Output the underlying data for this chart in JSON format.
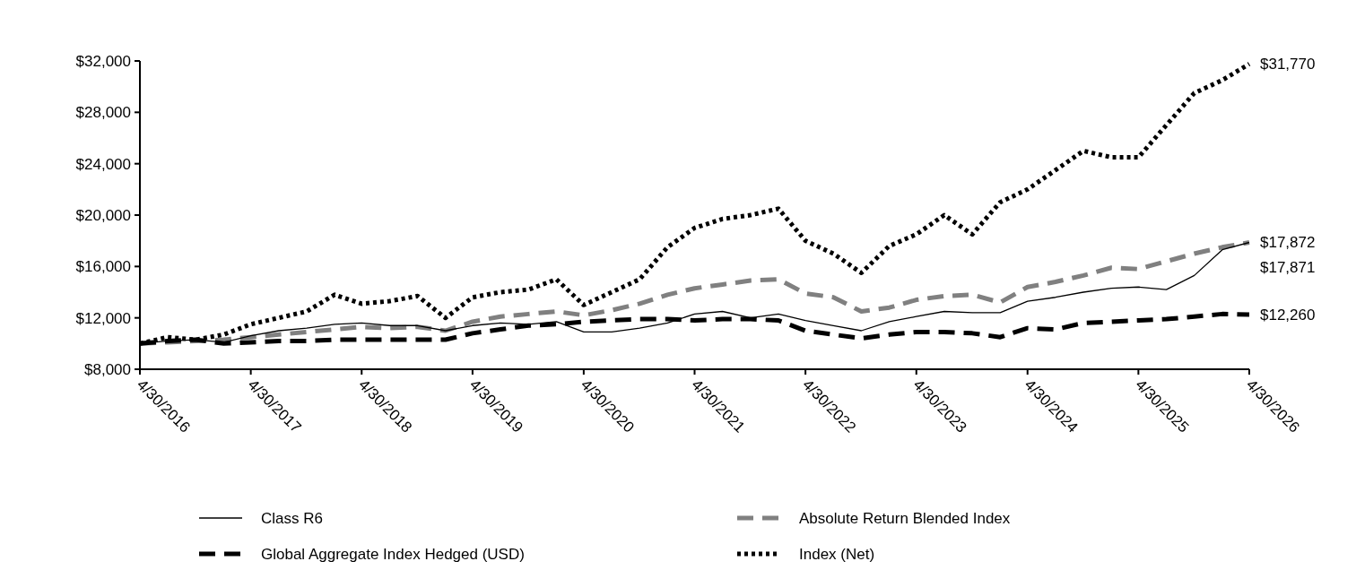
{
  "chart_data": {
    "type": "line",
    "x": [
      "2016-04-30",
      "2016-07-31",
      "2016-10-31",
      "2017-01-31",
      "2017-04-30",
      "2017-07-31",
      "2017-10-31",
      "2018-01-31",
      "2018-04-30",
      "2018-07-31",
      "2018-10-31",
      "2019-01-31",
      "2019-04-30",
      "2019-07-31",
      "2019-10-31",
      "2020-01-31",
      "2020-04-30",
      "2020-07-31",
      "2020-10-31",
      "2021-01-31",
      "2021-04-30",
      "2021-07-31",
      "2021-10-31",
      "2022-01-31",
      "2022-04-30",
      "2022-07-31",
      "2022-10-31",
      "2023-01-31",
      "2023-04-30",
      "2023-07-31",
      "2023-10-31",
      "2024-01-31",
      "2024-04-30",
      "2024-07-31",
      "2024-10-31",
      "2025-01-31",
      "2025-04-30",
      "2025-07-31",
      "2025-10-31",
      "2026-01-31",
      "2026-04-30"
    ],
    "xlim": [
      "2016-04-30",
      "2026-04-30"
    ],
    "xticks": [
      {
        "value": "2016-04-30",
        "label": "4/30/2016"
      },
      {
        "value": "2017-04-30",
        "label": "4/30/2017"
      },
      {
        "value": "2018-04-30",
        "label": "4/30/2018"
      },
      {
        "value": "2019-04-30",
        "label": "4/30/2019"
      },
      {
        "value": "2020-04-30",
        "label": "4/30/2020"
      },
      {
        "value": "2021-04-30",
        "label": "4/30/2021"
      },
      {
        "value": "2022-04-30",
        "label": "4/30/2022"
      },
      {
        "value": "2023-04-30",
        "label": "4/30/2023"
      },
      {
        "value": "2024-04-30",
        "label": "4/30/2024"
      },
      {
        "value": "2025-04-30",
        "label": "4/30/2025"
      },
      {
        "value": "2026-04-30",
        "label": "4/30/2026"
      }
    ],
    "ylim": [
      8000,
      32000
    ],
    "yticks": [
      {
        "value": 8000,
        "label": "$8,000"
      },
      {
        "value": 12000,
        "label": "$12,000"
      },
      {
        "value": 16000,
        "label": "$16,000"
      },
      {
        "value": 20000,
        "label": "$20,000"
      },
      {
        "value": 24000,
        "label": "$24,000"
      },
      {
        "value": 28000,
        "label": "$28,000"
      },
      {
        "value": 32000,
        "label": "$32,000"
      }
    ],
    "grid": false,
    "legend": "bottom",
    "series": [
      {
        "name": "Class R6",
        "color": "#000000",
        "line_style": "solid",
        "values": [
          10000,
          10200,
          10300,
          10100,
          10600,
          11000,
          11200,
          11500,
          11600,
          11400,
          11400,
          11000,
          11400,
          11600,
          11500,
          11700,
          10900,
          10900,
          11200,
          11600,
          12300,
          12500,
          12000,
          12300,
          11800,
          11400,
          11000,
          11700,
          12100,
          12500,
          12400,
          12400,
          13300,
          13600,
          14000,
          14300,
          14400,
          14200,
          15300,
          17300,
          17872
        ],
        "value_labels": [
          null,
          null,
          null,
          null,
          null,
          null,
          null,
          null,
          null,
          null,
          null,
          null,
          null,
          null,
          null,
          null,
          null,
          null,
          null,
          null,
          null,
          null,
          null,
          null,
          null,
          null,
          null,
          null,
          null,
          null,
          null,
          null,
          null,
          null,
          null,
          null,
          null,
          null,
          null,
          null,
          "$17,872"
        ]
      },
      {
        "name": "Absolute Return Blended Index",
        "color": "#808080",
        "line_style": "dashed",
        "values": [
          10000,
          10100,
          10200,
          10300,
          10500,
          10700,
          10900,
          11100,
          11300,
          11200,
          11300,
          11000,
          11700,
          12100,
          12300,
          12500,
          12200,
          12600,
          13100,
          13800,
          14300,
          14600,
          14900,
          15000,
          13900,
          13600,
          12500,
          12800,
          13400,
          13700,
          13800,
          13200,
          14400,
          14800,
          15300,
          15900,
          15800,
          16400,
          17000,
          17500,
          17871
        ],
        "value_labels": [
          null,
          null,
          null,
          null,
          null,
          null,
          null,
          null,
          null,
          null,
          null,
          null,
          null,
          null,
          null,
          null,
          null,
          null,
          null,
          null,
          null,
          null,
          null,
          null,
          null,
          null,
          null,
          null,
          null,
          null,
          null,
          null,
          null,
          null,
          null,
          null,
          null,
          null,
          null,
          null,
          "$17,871"
        ]
      },
      {
        "name": "Global Aggregate Index Hedged (USD)",
        "color": "#000000",
        "line_style": "dashed",
        "values": [
          10000,
          10200,
          10300,
          10000,
          10100,
          10200,
          10200,
          10300,
          10300,
          10300,
          10300,
          10300,
          10800,
          11100,
          11400,
          11500,
          11700,
          11800,
          11900,
          11900,
          11800,
          11900,
          11900,
          11800,
          11000,
          10700,
          10400,
          10700,
          10900,
          10900,
          10800,
          10500,
          11200,
          11100,
          11600,
          11700,
          11800,
          11900,
          12100,
          12300,
          12260
        ],
        "value_labels": [
          null,
          null,
          null,
          null,
          null,
          null,
          null,
          null,
          null,
          null,
          null,
          null,
          null,
          null,
          null,
          null,
          null,
          null,
          null,
          null,
          null,
          null,
          null,
          null,
          null,
          null,
          null,
          null,
          null,
          null,
          null,
          null,
          null,
          null,
          null,
          null,
          null,
          null,
          null,
          null,
          "$12,260"
        ]
      },
      {
        "name": "Index (Net)",
        "color": "#000000",
        "line_style": "dotted",
        "values": [
          10000,
          10500,
          10300,
          10700,
          11500,
          12000,
          12500,
          13800,
          13100,
          13300,
          13700,
          12000,
          13600,
          14000,
          14200,
          15000,
          13000,
          14000,
          15000,
          17500,
          19000,
          19700,
          20000,
          20500,
          18000,
          17000,
          15500,
          17600,
          18500,
          20000,
          18500,
          21000,
          22000,
          23500,
          25000,
          24500,
          24500,
          27000,
          29500,
          30500,
          31770
        ],
        "value_labels": [
          null,
          null,
          null,
          null,
          null,
          null,
          null,
          null,
          null,
          null,
          null,
          null,
          null,
          null,
          null,
          null,
          null,
          null,
          null,
          null,
          null,
          null,
          null,
          null,
          null,
          null,
          null,
          null,
          null,
          null,
          null,
          null,
          null,
          null,
          null,
          null,
          null,
          null,
          null,
          null,
          "$31,770"
        ]
      }
    ]
  }
}
